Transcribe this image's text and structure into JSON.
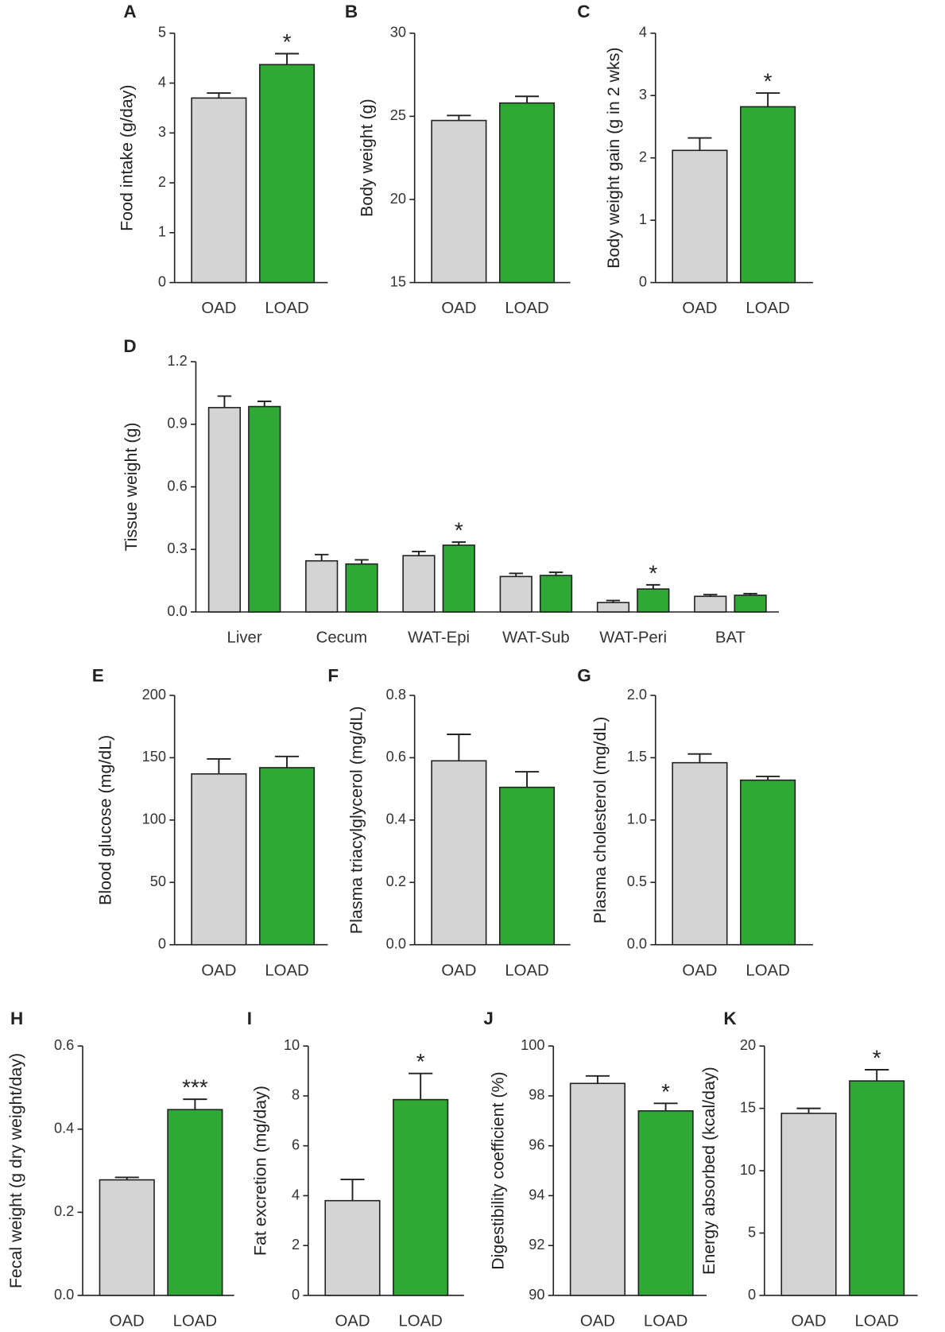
{
  "chart_data": [
    {
      "type": "bar",
      "label": "A",
      "ylabel": "Food intake (g/day)",
      "categories": [
        "OAD",
        "LOAD"
      ],
      "values": [
        3.7,
        4.37
      ],
      "errors": [
        0.1,
        0.22
      ],
      "colors": [
        "#d4d4d4",
        "#2fa836"
      ],
      "significance": [
        null,
        "*"
      ],
      "ylim": [
        0,
        5
      ],
      "yticks": [
        0,
        1,
        2,
        3,
        4,
        5
      ]
    },
    {
      "type": "bar",
      "label": "B",
      "ylabel": "Body weight (g)",
      "categories": [
        "OAD",
        "LOAD"
      ],
      "values": [
        24.75,
        25.8
      ],
      "errors": [
        0.3,
        0.4
      ],
      "colors": [
        "#d4d4d4",
        "#2fa836"
      ],
      "significance": [
        null,
        null
      ],
      "ylim": [
        15,
        30
      ],
      "yticks": [
        15,
        20,
        25,
        30
      ]
    },
    {
      "type": "bar",
      "label": "C",
      "ylabel": "Body weight gain (g in 2 wks)",
      "categories": [
        "OAD",
        "LOAD"
      ],
      "values": [
        2.12,
        2.82
      ],
      "errors": [
        0.2,
        0.22
      ],
      "colors": [
        "#d4d4d4",
        "#2fa836"
      ],
      "significance": [
        null,
        "*"
      ],
      "ylim": [
        0,
        4
      ],
      "yticks": [
        0,
        1,
        2,
        3,
        4
      ]
    },
    {
      "type": "bar",
      "label": "D",
      "ylabel": "Tissue weight (g)",
      "categories": [
        "Liver",
        "Cecum",
        "WAT-Epi",
        "WAT-Sub",
        "WAT-Peri",
        "BAT"
      ],
      "series": [
        {
          "color": "#d4d4d4",
          "values": [
            0.98,
            0.245,
            0.27,
            0.17,
            0.045,
            0.075
          ],
          "errors": [
            0.055,
            0.03,
            0.02,
            0.015,
            0.01,
            0.008
          ],
          "significance": [
            null,
            null,
            null,
            null,
            null,
            null
          ]
        },
        {
          "color": "#2fa836",
          "values": [
            0.985,
            0.23,
            0.32,
            0.175,
            0.11,
            0.08
          ],
          "errors": [
            0.025,
            0.02,
            0.015,
            0.015,
            0.02,
            0.008
          ],
          "significance": [
            null,
            null,
            "*",
            null,
            "*",
            null
          ]
        }
      ],
      "ylim": [
        0,
        1.2
      ],
      "yticks": [
        {
          "value": 0,
          "label": "0.0"
        },
        0.3,
        0.6,
        0.9,
        1.2
      ]
    },
    {
      "type": "bar",
      "label": "E",
      "ylabel": "Blood glucose (mg/dL)",
      "categories": [
        "OAD",
        "LOAD"
      ],
      "values": [
        137,
        142
      ],
      "errors": [
        12,
        9
      ],
      "colors": [
        "#d4d4d4",
        "#2fa836"
      ],
      "significance": [
        null,
        null
      ],
      "ylim": [
        0,
        200
      ],
      "yticks": [
        0,
        50,
        100,
        150,
        200
      ]
    },
    {
      "type": "bar",
      "label": "F",
      "ylabel": "Plasma triacylglycerol (mg/dL)",
      "categories": [
        "OAD",
        "LOAD"
      ],
      "values": [
        0.59,
        0.505
      ],
      "errors": [
        0.085,
        0.05
      ],
      "colors": [
        "#d4d4d4",
        "#2fa836"
      ],
      "significance": [
        null,
        null
      ],
      "ylim": [
        0,
        0.8
      ],
      "yticks": [
        {
          "value": 0,
          "label": "0.0"
        },
        0.2,
        0.4,
        0.6,
        0.8
      ]
    },
    {
      "type": "bar",
      "label": "G",
      "ylabel": "Plasma cholesterol (mg/dL)",
      "categories": [
        "OAD",
        "LOAD"
      ],
      "values": [
        1.46,
        1.32
      ],
      "errors": [
        0.07,
        0.03
      ],
      "colors": [
        "#d4d4d4",
        "#2fa836"
      ],
      "significance": [
        null,
        null
      ],
      "ylim": [
        0,
        2
      ],
      "yticks": [
        {
          "value": 0,
          "label": "0.0"
        },
        0.5,
        {
          "value": 1,
          "label": "1.0"
        },
        1.5,
        {
          "value": 2,
          "label": "2.0"
        }
      ]
    },
    {
      "type": "bar",
      "label": "H",
      "ylabel": "Fecal weight (g dry weight/day)",
      "categories": [
        "OAD",
        "LOAD"
      ],
      "values": [
        0.278,
        0.447
      ],
      "errors": [
        0.006,
        0.025
      ],
      "colors": [
        "#d4d4d4",
        "#2fa836"
      ],
      "significance": [
        null,
        "***"
      ],
      "ylim": [
        0,
        0.6
      ],
      "yticks": [
        {
          "value": 0,
          "label": "0.0"
        },
        0.2,
        0.4,
        0.6
      ]
    },
    {
      "type": "bar",
      "label": "I",
      "ylabel": "Fat excretion (mg/day)",
      "categories": [
        "OAD",
        "LOAD"
      ],
      "values": [
        3.8,
        7.85
      ],
      "errors": [
        0.85,
        1.05
      ],
      "colors": [
        "#d4d4d4",
        "#2fa836"
      ],
      "significance": [
        null,
        "*"
      ],
      "ylim": [
        0,
        10
      ],
      "yticks": [
        0,
        2,
        4,
        6,
        8,
        10
      ]
    },
    {
      "type": "bar",
      "label": "J",
      "ylabel": "Digestibility coefficient  (%)",
      "categories": [
        "OAD",
        "LOAD"
      ],
      "values": [
        98.5,
        97.4
      ],
      "errors": [
        0.3,
        0.3
      ],
      "colors": [
        "#d4d4d4",
        "#2fa836"
      ],
      "significance": [
        null,
        "*"
      ],
      "ylim": [
        90,
        100
      ],
      "yticks": [
        90,
        92,
        94,
        96,
        98,
        100
      ]
    },
    {
      "type": "bar",
      "label": "K",
      "ylabel": "Energy absorbed  (kcal/day)",
      "categories": [
        "OAD",
        "LOAD"
      ],
      "values": [
        14.6,
        17.2
      ],
      "errors": [
        0.4,
        0.9
      ],
      "colors": [
        "#d4d4d4",
        "#2fa836"
      ],
      "significance": [
        null,
        "*"
      ],
      "ylim": [
        0,
        20
      ],
      "yticks": [
        0,
        5,
        10,
        15,
        20
      ]
    }
  ]
}
